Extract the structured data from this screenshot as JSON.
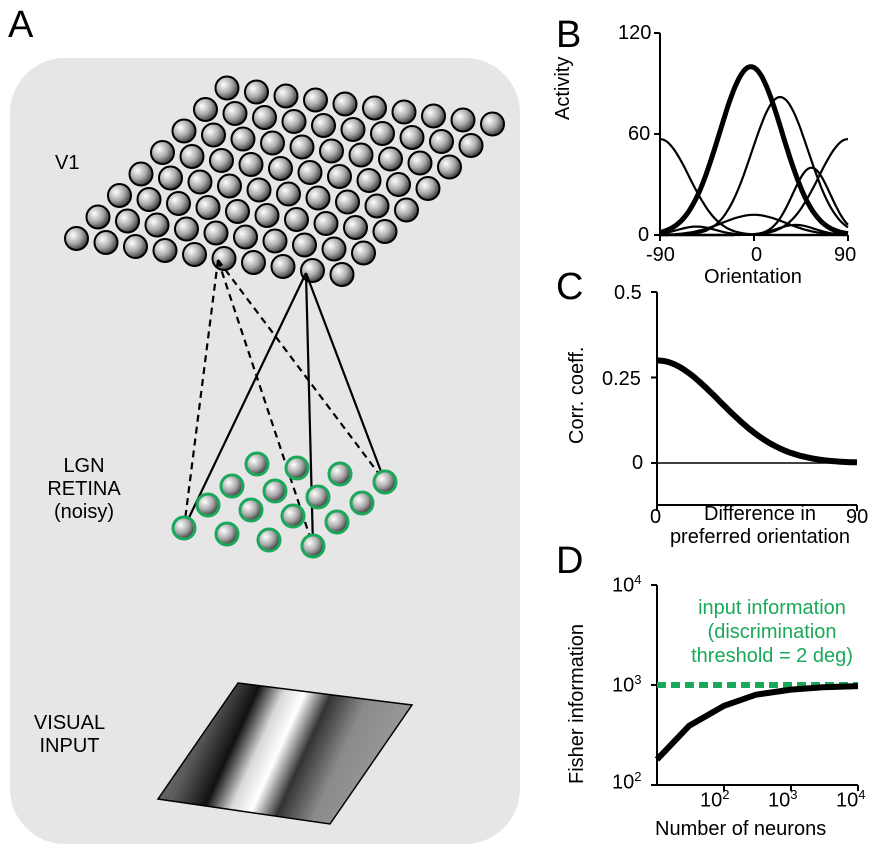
{
  "panel_a": {
    "letter": "A",
    "v1_label": "V1",
    "lgn_label_lines": [
      "LGN",
      "RETINA",
      "(noisy)"
    ],
    "visual_input_lines": [
      "VISUAL",
      "INPUT"
    ],
    "colors": {
      "background": "#e6e6e6",
      "lgn_ring": "#1aa85a"
    }
  },
  "chart_data": [
    {
      "panel": "B",
      "type": "line",
      "xlabel": "Orientation",
      "ylabel": "Activity",
      "xlim": [
        -90,
        90
      ],
      "ylim": [
        0,
        120
      ],
      "xticks": [
        "-90",
        "0",
        "90"
      ],
      "yticks": [
        "0",
        "60",
        "120"
      ],
      "series": [
        {
          "bold": true,
          "peak": -3,
          "amplitude": 100,
          "width": 30
        },
        {
          "bold": false,
          "peak": 25,
          "amplitude": 82,
          "width": 27
        },
        {
          "bold": false,
          "peak": 55,
          "amplitude": 40,
          "width": 18
        },
        {
          "bold": false,
          "peak": 90,
          "amplitude": 57,
          "width": 28
        },
        {
          "bold": false,
          "peak": -90,
          "amplitude": 57,
          "width": 28
        },
        {
          "bold": false,
          "peak": 0,
          "amplitude": 12,
          "width": 30
        },
        {
          "bold": false,
          "peak": -55,
          "amplitude": 5,
          "width": 18
        },
        {
          "bold": false,
          "peak": 40,
          "amplitude": 6,
          "width": 18
        }
      ]
    },
    {
      "panel": "C",
      "type": "line",
      "xlabel_lines": [
        "Difference in",
        "preferred orientation"
      ],
      "ylabel": "Corr. coeff.",
      "xlim": [
        0,
        90
      ],
      "ylim": [
        0,
        0.5
      ],
      "xticks": [
        "0",
        "90"
      ],
      "yticks": [
        "0",
        "0.25",
        "0.5"
      ],
      "series": [
        {
          "x": [
            0,
            10,
            20,
            30,
            40,
            50,
            60,
            70,
            80,
            90
          ],
          "y": [
            0.3,
            0.28,
            0.225,
            0.15,
            0.085,
            0.04,
            0.015,
            0.005,
            0.002,
            0.0
          ]
        }
      ]
    },
    {
      "panel": "D",
      "type": "line",
      "xlabel": "Number of neurons",
      "ylabel": "Fisher information",
      "yscale": "log",
      "ylim": [
        100,
        10000
      ],
      "xticks": [
        "10^2",
        "10^3",
        "10^4"
      ],
      "yticks": [
        "10^2",
        "10^3",
        "10^4"
      ],
      "annotation_lines": [
        "input information",
        "(discrimination",
        "threshold = 2 deg)"
      ],
      "input_information_level": 1000,
      "annotation_color": "#1aa85a",
      "series": [
        {
          "x": [
            10,
            30,
            100,
            300,
            1000,
            3000,
            10000
          ],
          "y": [
            180,
            390,
            620,
            800,
            900,
            950,
            975
          ]
        }
      ]
    }
  ],
  "panel_letters": {
    "b": "B",
    "c": "C",
    "d": "D"
  }
}
